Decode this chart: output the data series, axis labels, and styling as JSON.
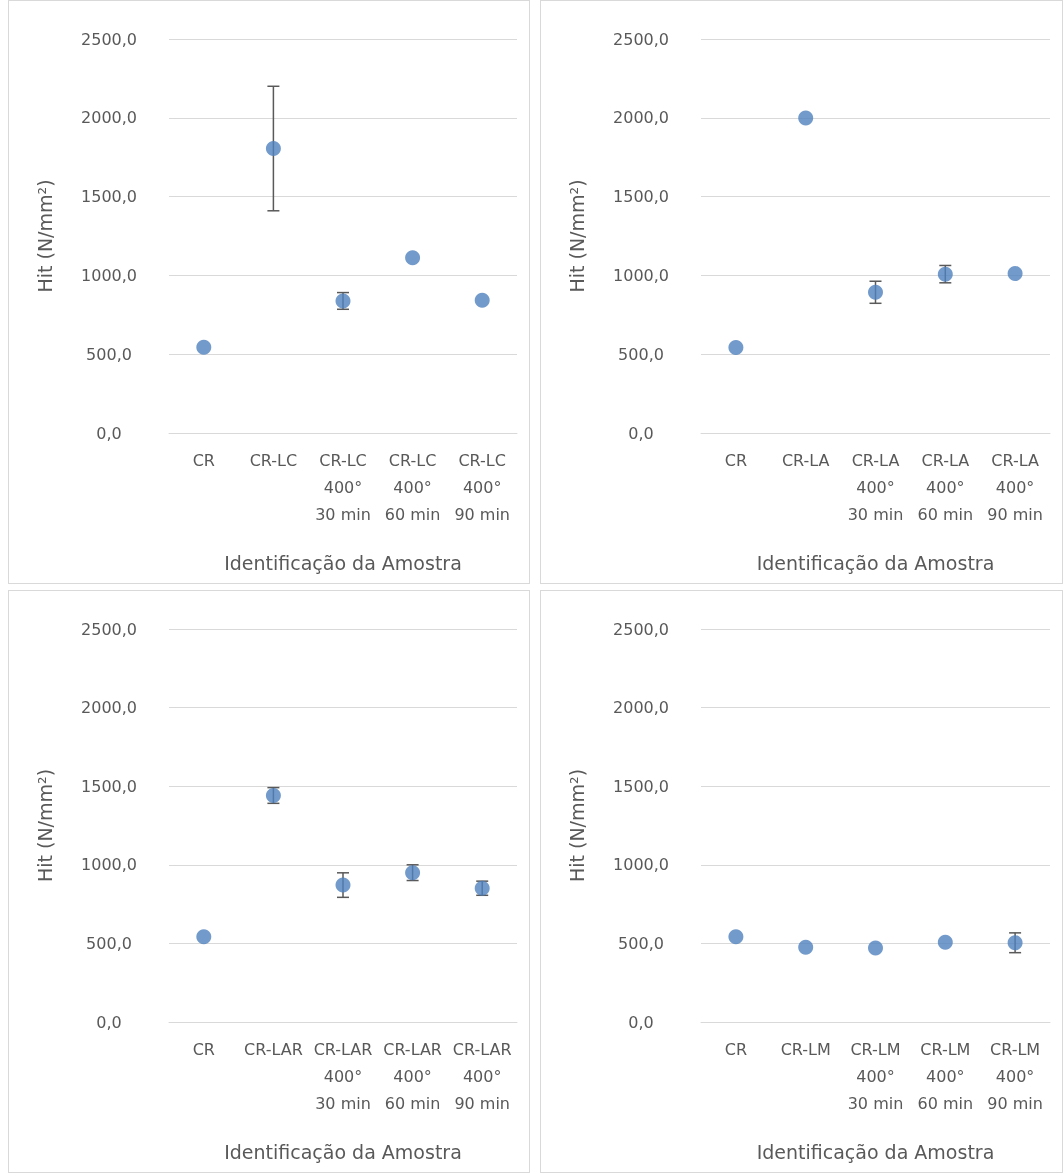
{
  "chart_data": [
    {
      "type": "scatter",
      "xlabel": "Identificação da Amostra",
      "ylabel": "Hit (N/mm²)",
      "categories": [
        "CR",
        "CR-LC",
        "CR-LC\n400°\n30 min",
        "CR-LC\n400°\n60 min",
        "CR-LC\n400°\n90 min"
      ],
      "series": [
        {
          "color": "#4f81bd",
          "values": [
            544,
            1805,
            838,
            1112,
            842
          ],
          "errors": [
            null,
            395,
            53,
            null,
            null
          ]
        }
      ],
      "ylim": [
        0,
        2500
      ],
      "yticks": [
        {
          "value": 0,
          "label": "0,0"
        },
        {
          "value": 500,
          "label": "500,0"
        },
        {
          "value": 1000,
          "label": "1000,0"
        },
        {
          "value": 1500,
          "label": "1500,0"
        },
        {
          "value": 2000,
          "label": "2000,0"
        },
        {
          "value": 2500,
          "label": "2500,0"
        }
      ],
      "grid": "y",
      "marker": "circle"
    },
    {
      "type": "scatter",
      "xlabel": "Identificação da Amostra",
      "ylabel": "Hit (N/mm²)",
      "categories": [
        "CR",
        "CR-LA",
        "CR-LA\n400°\n30 min",
        "CR-LA\n400°\n60 min",
        "CR-LA\n400°\n90 min"
      ],
      "series": [
        {
          "color": "#4f81bd",
          "values": [
            543,
            1998,
            893,
            1008,
            1012
          ],
          "errors": [
            null,
            null,
            70,
            55,
            null
          ]
        }
      ],
      "ylim": [
        0,
        2500
      ],
      "yticks": [
        {
          "value": 0,
          "label": "0,0"
        },
        {
          "value": 500,
          "label": "500,0"
        },
        {
          "value": 1000,
          "label": "1000,0"
        },
        {
          "value": 1500,
          "label": "1500,0"
        },
        {
          "value": 2000,
          "label": "2000,0"
        },
        {
          "value": 2500,
          "label": "2500,0"
        }
      ],
      "grid": "y",
      "marker": "circle"
    },
    {
      "type": "scatter",
      "xlabel": "Identificação da Amostra",
      "ylabel": "Hit (N/mm²)",
      "categories": [
        "CR",
        "CR-LAR",
        "CR-LAR\n400°\n30 min",
        "CR-LAR\n400°\n60 min",
        "CR-LAR\n400°\n90 min"
      ],
      "series": [
        {
          "color": "#4f81bd",
          "values": [
            542,
            1441,
            871,
            950,
            851
          ],
          "errors": [
            null,
            50,
            78,
            50,
            45
          ]
        }
      ],
      "ylim": [
        0,
        2500
      ],
      "yticks": [
        {
          "value": 0,
          "label": "0,0"
        },
        {
          "value": 500,
          "label": "500,0"
        },
        {
          "value": 1000,
          "label": "1000,0"
        },
        {
          "value": 1500,
          "label": "1500,0"
        },
        {
          "value": 2000,
          "label": "2000,0"
        },
        {
          "value": 2500,
          "label": "2500,0"
        }
      ],
      "grid": "y",
      "marker": "circle"
    },
    {
      "type": "scatter",
      "xlabel": "Identificação da Amostra",
      "ylabel": "Hit (N/mm²)",
      "categories": [
        "CR",
        "CR-LM",
        "CR-LM\n400°\n30 min",
        "CR-LM\n400°\n60 min",
        "CR-LM\n400°\n90 min"
      ],
      "series": [
        {
          "color": "#4f81bd",
          "values": [
            543,
            475,
            471,
            508,
            504
          ],
          "errors": [
            null,
            null,
            null,
            null,
            63
          ]
        }
      ],
      "ylim": [
        0,
        2500
      ],
      "yticks": [
        {
          "value": 0,
          "label": "0,0"
        },
        {
          "value": 500,
          "label": "500,0"
        },
        {
          "value": 1000,
          "label": "1000,0"
        },
        {
          "value": 1500,
          "label": "1500,0"
        },
        {
          "value": 2000,
          "label": "2000,0"
        },
        {
          "value": 2500,
          "label": "2500,0"
        }
      ],
      "grid": "y",
      "marker": "circle"
    }
  ]
}
